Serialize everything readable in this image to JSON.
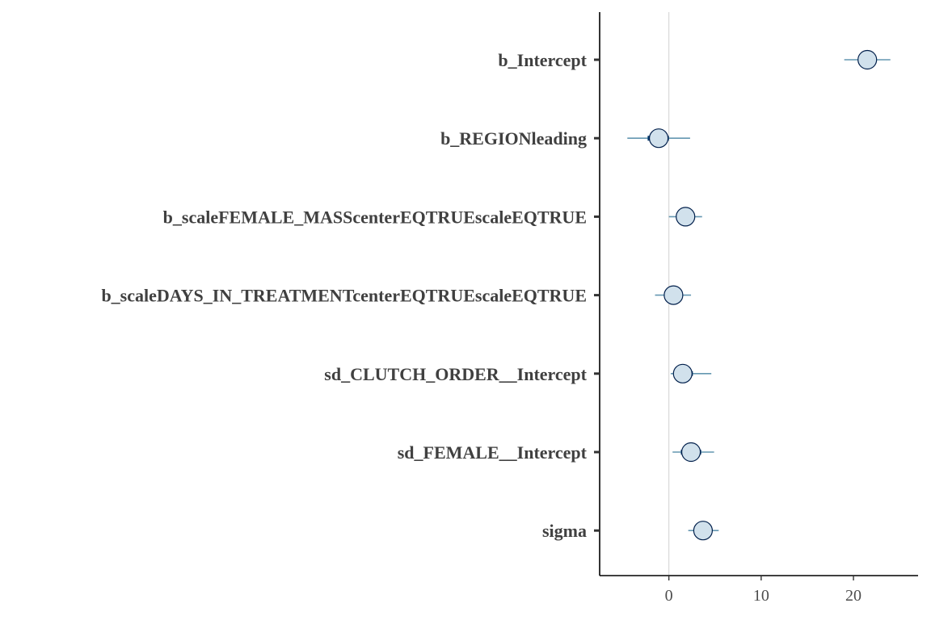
{
  "chart_data": {
    "type": "scatter",
    "title": "",
    "xlabel": "",
    "ylabel": "",
    "xlim": [
      -7.5,
      27
    ],
    "x_ticks": [
      0,
      10,
      20
    ],
    "x_tick_labels": [
      "0",
      "10",
      "20"
    ],
    "zero_reference_line": true,
    "grid": false,
    "legend": "none",
    "parameters": [
      {
        "label": "b_Intercept",
        "estimate": 21.5,
        "inner": [
          21.0,
          22.2
        ],
        "outer": [
          19.0,
          24.0
        ]
      },
      {
        "label": "b_REGIONleading",
        "estimate": -1.1,
        "inner": [
          -2.3,
          0.0
        ],
        "outer": [
          -4.5,
          2.3
        ]
      },
      {
        "label": "b_scaleFEMALE_MASScenterEQTRUEscaleEQTRUE",
        "estimate": 1.8,
        "inner": [
          0.9,
          2.8
        ],
        "outer": [
          0.0,
          3.6
        ]
      },
      {
        "label": "b_scaleDAYS_IN_TREATMENTcenterEQTRUEscaleEQTRUE",
        "estimate": 0.5,
        "inner": [
          -0.4,
          1.4
        ],
        "outer": [
          -1.5,
          2.4
        ]
      },
      {
        "label": "sd_CLUTCH_ORDER__Intercept",
        "estimate": 1.5,
        "inner": [
          0.7,
          2.6
        ],
        "outer": [
          0.2,
          4.6
        ]
      },
      {
        "label": "sd_FEMALE__Intercept",
        "estimate": 2.4,
        "inner": [
          1.3,
          3.5
        ],
        "outer": [
          0.4,
          4.9
        ]
      },
      {
        "label": "sigma",
        "estimate": 3.7,
        "inner": [
          3.0,
          4.4
        ],
        "outer": [
          2.1,
          5.4
        ]
      }
    ]
  },
  "colors": {
    "point_fill": "#d1e1ec",
    "point_stroke": "#011f4b",
    "outer_interval": "#6497b1",
    "inner_interval": "#005b96",
    "inner_interval_highlight": "#03396c",
    "reference_line": "#d9d9d9",
    "axis": "#000000"
  }
}
